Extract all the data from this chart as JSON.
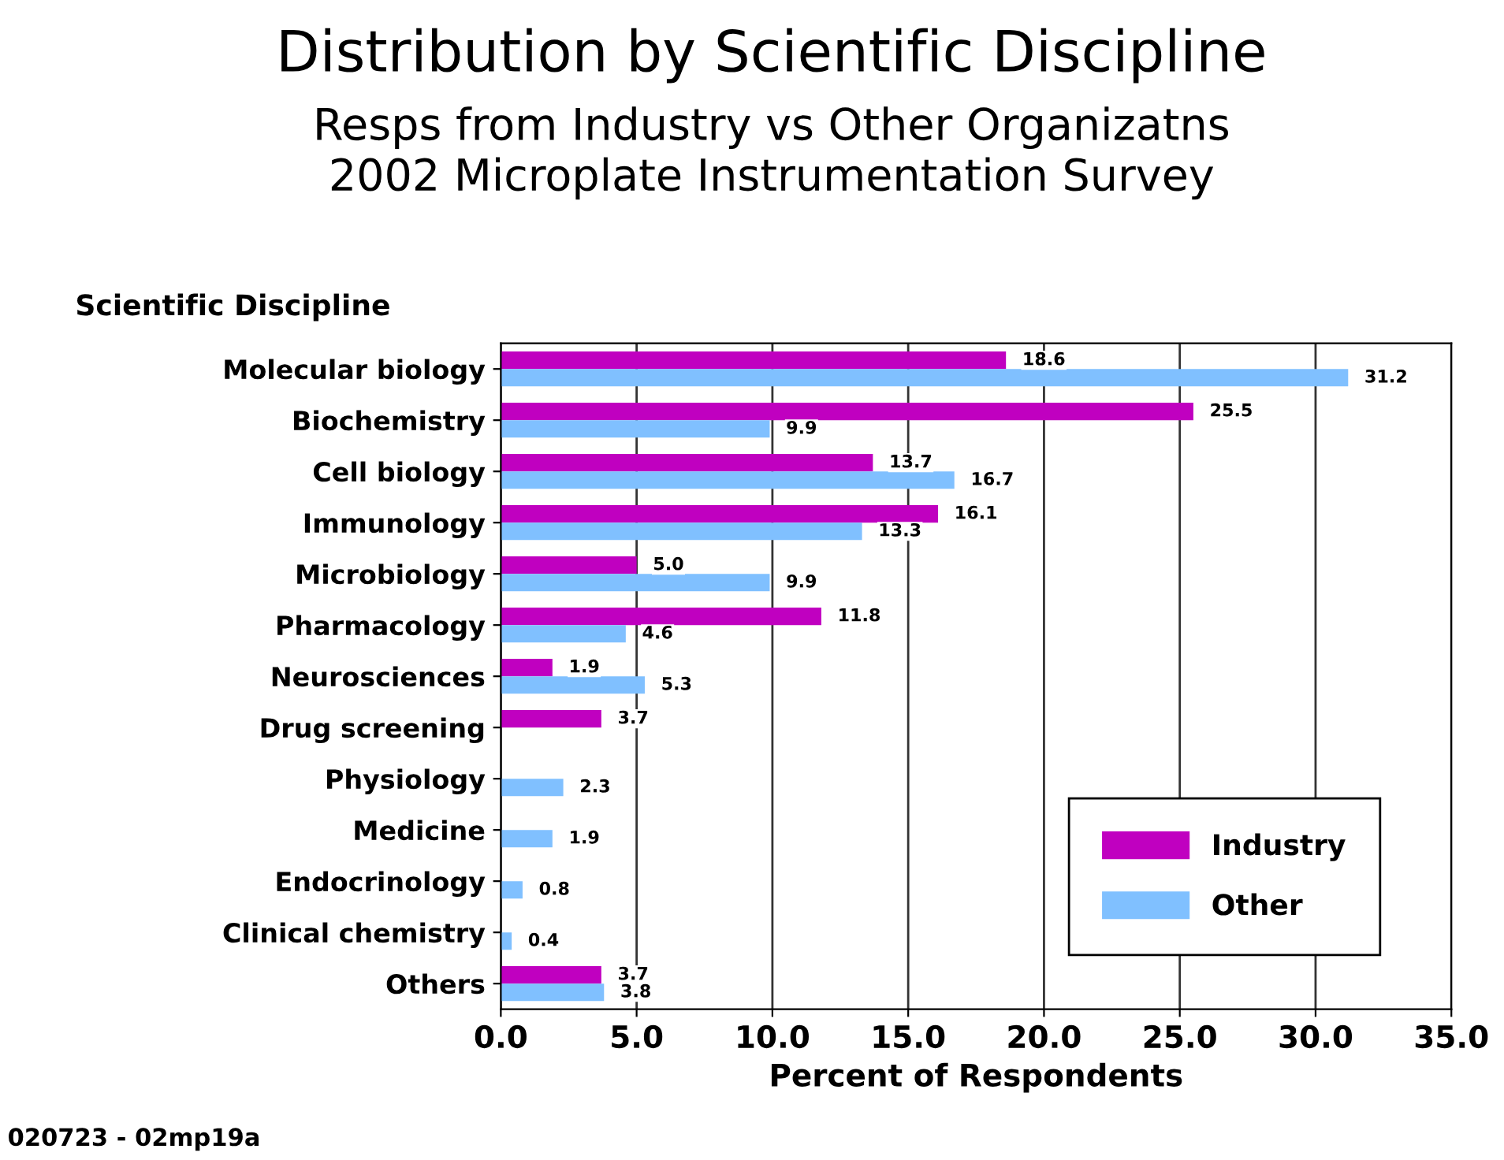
{
  "chart_data": {
    "type": "bar",
    "orientation": "horizontal",
    "title": "Distribution by Scientific Discipline",
    "subtitle": "Resps from Industry vs Other Organizatns\n2002 Microplate Instrumentation Survey",
    "ylabel": "Scientific Discipline",
    "xlabel": "Percent of Respondents",
    "categories": [
      "Molecular biology",
      "Biochemistry",
      "Cell biology",
      "Immunology",
      "Microbiology",
      "Pharmacology",
      "Neurosciences",
      "Drug screening",
      "Physiology",
      "Medicine",
      "Endocrinology",
      "Clinical chemistry",
      "Others"
    ],
    "series": [
      {
        "name": "Industry",
        "color": "#c000c0",
        "values": [
          18.6,
          25.5,
          13.7,
          16.1,
          5.0,
          11.8,
          1.9,
          3.7,
          null,
          null,
          null,
          null,
          3.7
        ],
        "value_labels": [
          "18.6",
          "25.5",
          "13.7",
          "16.1",
          "5.0",
          "11.8",
          "1.9",
          "3.7",
          null,
          null,
          null,
          null,
          "3.7"
        ]
      },
      {
        "name": "Other",
        "color": "#80c0ff",
        "values": [
          31.2,
          9.9,
          16.7,
          13.3,
          9.9,
          4.6,
          5.3,
          null,
          2.3,
          1.9,
          0.8,
          0.4,
          3.8
        ],
        "value_labels": [
          "31.2",
          "9.9",
          "16.7",
          "13.3",
          "9.9",
          "4.6",
          "5.3",
          null,
          "2.3",
          "1.9",
          "0.8",
          "0.4",
          "3.8"
        ]
      }
    ],
    "xlim": [
      0,
      35
    ],
    "xticks": [
      {
        "value": 0,
        "label": "0.0"
      },
      {
        "value": 5,
        "label": "5.0"
      },
      {
        "value": 10,
        "label": "10.0"
      },
      {
        "value": 15,
        "label": "15.0"
      },
      {
        "value": 20,
        "label": "20.0"
      },
      {
        "value": 25,
        "label": "25.0"
      },
      {
        "value": 30,
        "label": "30.0"
      },
      {
        "value": 35,
        "label": "35.0"
      }
    ],
    "grid": "x",
    "legend": "bottom right",
    "annotations": [
      "020723 - 02mp19a"
    ]
  }
}
